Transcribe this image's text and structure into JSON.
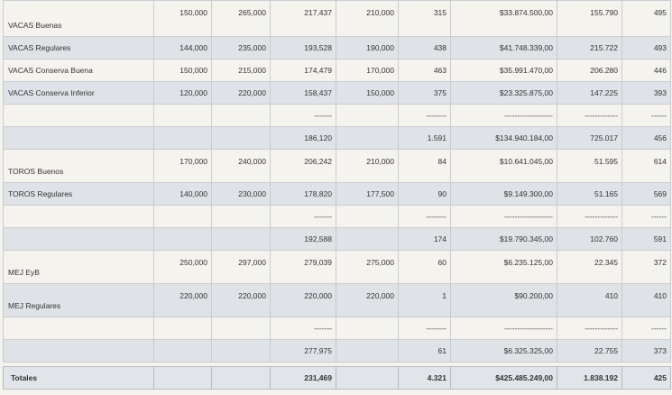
{
  "rows": [
    {
      "label": "VACAS Buenas",
      "c2": "150,000",
      "c3": "265,000",
      "c4": "217,437",
      "c5": "210,000",
      "c6": "315",
      "c7": "$33.874.500,00",
      "c8": "155.790",
      "c9": "495"
    },
    {
      "label": "VACAS Regulares",
      "c2": "144,000",
      "c3": "235,000",
      "c4": "193,528",
      "c5": "190,000",
      "c6": "438",
      "c7": "$41.748.339,00",
      "c8": "215.722",
      "c9": "493"
    },
    {
      "label": "VACAS Conserva Buena",
      "c2": "150,000",
      "c3": "215,000",
      "c4": "174,479",
      "c5": "170,000",
      "c6": "463",
      "c7": "$35.991.470,00",
      "c8": "206.280",
      "c9": "446"
    },
    {
      "label": "VACAS Conserva Inferior",
      "c2": "120,000",
      "c3": "220,000",
      "c4": "158,437",
      "c5": "150,000",
      "c6": "375",
      "c7": "$23.325.875,00",
      "c8": "147.225",
      "c9": "393"
    },
    {
      "label": "",
      "c2": "",
      "c3": "",
      "c4": "-------",
      "c5": "",
      "c6": "--------",
      "c7": "-------------------",
      "c8": "-------------",
      "c9": "------"
    },
    {
      "label": "",
      "c2": "",
      "c3": "",
      "c4": "186,120",
      "c5": "",
      "c6": "1.591",
      "c7": "$134.940.184,00",
      "c8": "725.017",
      "c9": "456"
    },
    {
      "label": "TOROS Buenos",
      "c2": "170,000",
      "c3": "240,000",
      "c4": "206,242",
      "c5": "210,000",
      "c6": "84",
      "c7": "$10.641.045,00",
      "c8": "51.595",
      "c9": "614"
    },
    {
      "label": "TOROS Regulares",
      "c2": "140,000",
      "c3": "230,000",
      "c4": "178,820",
      "c5": "177,500",
      "c6": "90",
      "c7": "$9.149.300,00",
      "c8": "51.165",
      "c9": "569"
    },
    {
      "label": "",
      "c2": "",
      "c3": "",
      "c4": "-------",
      "c5": "",
      "c6": "--------",
      "c7": "-------------------",
      "c8": "-------------",
      "c9": "------"
    },
    {
      "label": "",
      "c2": "",
      "c3": "",
      "c4": "192,588",
      "c5": "",
      "c6": "174",
      "c7": "$19.790.345,00",
      "c8": "102.760",
      "c9": "591"
    },
    {
      "label": "MEJ EyB",
      "c2": "250,000",
      "c3": "297,000",
      "c4": "279,039",
      "c5": "275,000",
      "c6": "60",
      "c7": "$6.235.125,00",
      "c8": "22.345",
      "c9": "372"
    },
    {
      "label": "MEJ Regulares",
      "c2": "220,000",
      "c3": "220,000",
      "c4": "220,000",
      "c5": "220,000",
      "c6": "1",
      "c7": "$90.200,00",
      "c8": "410",
      "c9": "410"
    },
    {
      "label": "",
      "c2": "",
      "c3": "",
      "c4": "-------",
      "c5": "",
      "c6": "--------",
      "c7": "-------------------",
      "c8": "-------------",
      "c9": "------"
    },
    {
      "label": "",
      "c2": "",
      "c3": "",
      "c4": "277,975",
      "c5": "",
      "c6": "61",
      "c7": "$6.325.325,00",
      "c8": "22.755",
      "c9": "373"
    }
  ],
  "totals": {
    "label": "Totales",
    "c4": "231,469",
    "c6": "4.321",
    "c7": "$425.485.249,00",
    "c8": "1.838.192",
    "c9": "425"
  }
}
